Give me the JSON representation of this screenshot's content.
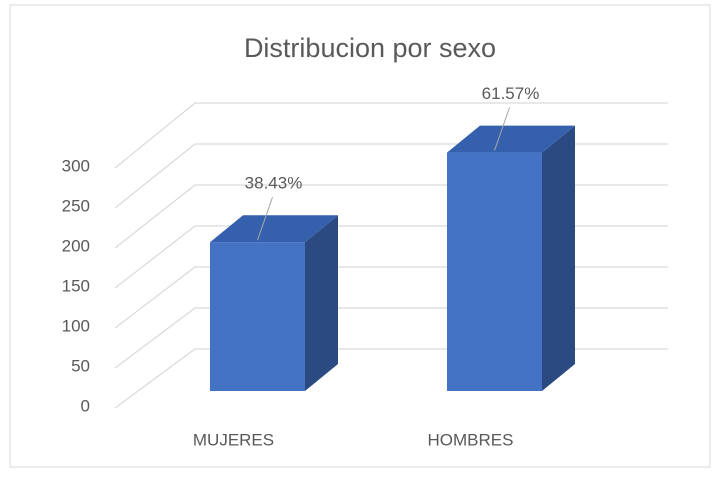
{
  "chart_data": {
    "type": "bar3d",
    "title": "Distribucion por sexo",
    "categories": [
      "MUJERES",
      "HOMBRES"
    ],
    "values": [
      186,
      298
    ],
    "data_labels": [
      "38.43%",
      "61.57%"
    ],
    "color": "#4472c4",
    "ylim": [
      0,
      300
    ],
    "yticks": [
      0,
      50,
      100,
      150,
      200,
      250,
      300
    ],
    "grid": true
  }
}
